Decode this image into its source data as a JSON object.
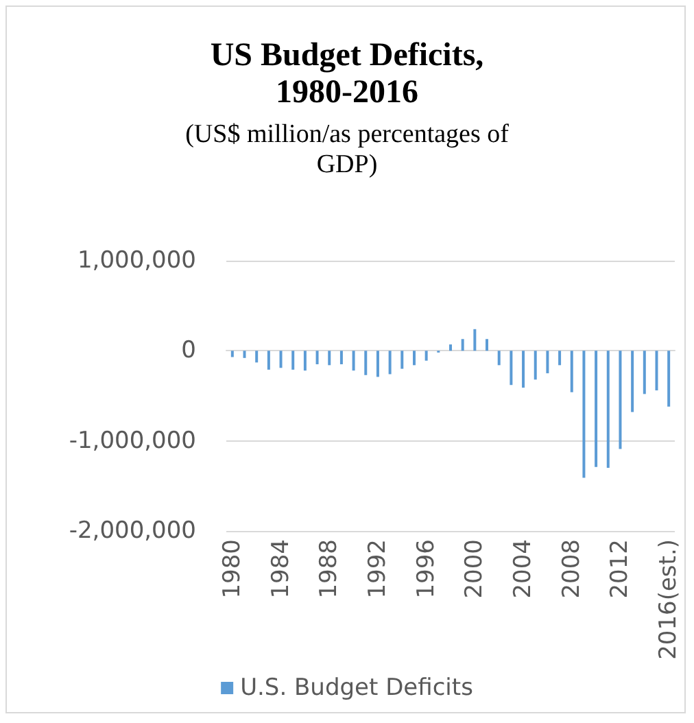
{
  "chart_data": {
    "type": "bar",
    "title": "US Budget Deficits,\n1980-2016",
    "subtitle": "(US$ million/as percentages of\nGDP)",
    "categories": [
      "1980",
      null,
      null,
      null,
      "1984",
      null,
      null,
      null,
      "1988",
      null,
      null,
      null,
      "1992",
      null,
      null,
      null,
      "1996",
      null,
      null,
      null,
      "2000",
      null,
      null,
      null,
      "2004",
      null,
      null,
      null,
      "2008",
      null,
      null,
      null,
      "2012",
      null,
      null,
      null,
      "2016(est.)"
    ],
    "series": [
      {
        "name": "U.S. Budget Deficits",
        "color": "#5b9bd5",
        "values": [
          -70000,
          -80000,
          -130000,
          -210000,
          -190000,
          -210000,
          -220000,
          -150000,
          -160000,
          -150000,
          -220000,
          -270000,
          -290000,
          -260000,
          -200000,
          -160000,
          -110000,
          -20000,
          70000,
          130000,
          240000,
          130000,
          -160000,
          -380000,
          -410000,
          -320000,
          -250000,
          -160000,
          -460000,
          -1410000,
          -1290000,
          -1300000,
          -1090000,
          -680000,
          -480000,
          -440000,
          -620000
        ]
      }
    ],
    "ylim": [
      -2000000,
      1000000
    ],
    "yticks": [
      {
        "value": -2000000,
        "label": "-2,000,000"
      },
      {
        "value": -1000000,
        "label": "-1,000,000"
      },
      0,
      {
        "value": 1000000,
        "label": "1,000,000"
      }
    ],
    "grid": "y",
    "legend": "bottom"
  }
}
